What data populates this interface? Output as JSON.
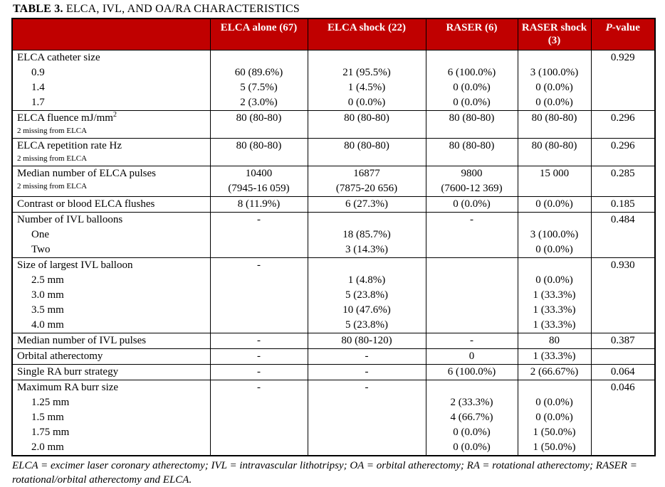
{
  "title": {
    "label_bold": "TABLE 3.",
    "label_rest": " ELCA, IVL, AND OA/RA CHARACTERISTICS"
  },
  "colors": {
    "header_bg": "#C00000",
    "header_text": "#FFFFFF",
    "border": "#000000"
  },
  "table": {
    "columns": [
      {
        "label": ""
      },
      {
        "label": "ELCA alone (67)"
      },
      {
        "label": "ELCA shock (22)"
      },
      {
        "label": "RASER (6)"
      },
      {
        "label": "RASER shock (3)"
      },
      {
        "label": "P-value",
        "italic_p": true
      }
    ],
    "rows": [
      {
        "section_start": true,
        "label": "ELCA catheter size",
        "cells": [
          "",
          "",
          "",
          ""
        ],
        "p": "0.929"
      },
      {
        "indent": true,
        "label": "0.9",
        "cells": [
          "60 (89.6%)",
          "21 (95.5%)",
          "6 (100.0%)",
          "3 (100.0%)"
        ],
        "p": ""
      },
      {
        "indent": true,
        "label": "1.4",
        "cells": [
          "5 (7.5%)",
          "1 (4.5%)",
          "0 (0.0%)",
          "0 (0.0%)"
        ],
        "p": ""
      },
      {
        "indent": true,
        "label": "1.7",
        "cells": [
          "2 (3.0%)",
          "0 (0.0%)",
          "0 (0.0%)",
          "0 (0.0%)"
        ],
        "p": ""
      },
      {
        "section_start": true,
        "label": "ELCA fluence mJ/mm",
        "sup": "2",
        "note": "2 missing from ELCA",
        "cells": [
          "80 (80-80)",
          "80 (80-80)",
          "80 (80-80)",
          "80 (80-80)"
        ],
        "p": "0.296"
      },
      {
        "section_start": true,
        "label": "ELCA repetition rate Hz",
        "note": "2 missing from ELCA",
        "cells": [
          "80 (80-80)",
          "80 (80-80)",
          "80 (80-80)",
          "80 (80-80)"
        ],
        "p": "0.296"
      },
      {
        "section_start": true,
        "label": "Median number of ELCA pulses",
        "note": "2 missing from ELCA",
        "cells": [
          "10400\n(7945-16 059)",
          "16877\n(7875-20 656)",
          "9800\n(7600-12 369)",
          "15 000"
        ],
        "p": "0.285"
      },
      {
        "section_start": true,
        "label": "Contrast or blood ELCA flushes",
        "cells": [
          "8 (11.9%)",
          "6 (27.3%)",
          "0 (0.0%)",
          "0 (0.0%)"
        ],
        "p": "0.185"
      },
      {
        "section_start": true,
        "label": "Number of IVL balloons",
        "cells": [
          "-",
          "",
          "-",
          ""
        ],
        "p": "0.484"
      },
      {
        "indent": true,
        "label": "One",
        "cells": [
          "",
          "18 (85.7%)",
          "",
          "3 (100.0%)"
        ],
        "p": ""
      },
      {
        "indent": true,
        "label": "Two",
        "cells": [
          "",
          "3 (14.3%)",
          "",
          "0 (0.0%)"
        ],
        "p": ""
      },
      {
        "section_start": true,
        "label": "Size of largest IVL balloon",
        "cells": [
          "-",
          "",
          "",
          ""
        ],
        "p": "0.930"
      },
      {
        "indent": true,
        "label": "2.5 mm",
        "cells": [
          "",
          "1 (4.8%)",
          "",
          "0 (0.0%)"
        ],
        "p": ""
      },
      {
        "indent": true,
        "label": "3.0 mm",
        "cells": [
          "",
          "5 (23.8%)",
          "",
          "1 (33.3%)"
        ],
        "p": ""
      },
      {
        "indent": true,
        "label": "3.5 mm",
        "cells": [
          "",
          "10 (47.6%)",
          "",
          "1 (33.3%)"
        ],
        "p": ""
      },
      {
        "indent": true,
        "label": "4.0 mm",
        "cells": [
          "",
          "5 (23.8%)",
          "",
          "1 (33.3%)"
        ],
        "p": ""
      },
      {
        "section_start": true,
        "label": "Median number of IVL pulses",
        "cells": [
          "-",
          "80 (80-120)",
          "-",
          "80"
        ],
        "p": "0.387"
      },
      {
        "section_start": true,
        "label": "Orbital atherectomy",
        "cells": [
          "-",
          "-",
          "0",
          "1 (33.3%)"
        ],
        "p": ""
      },
      {
        "section_start": true,
        "label": "Single RA burr strategy",
        "cells": [
          "-",
          "-",
          "6 (100.0%)",
          "2 (66.67%)"
        ],
        "p": "0.064"
      },
      {
        "section_start": true,
        "label": "Maximum RA burr size",
        "cells": [
          "-",
          "-",
          "",
          ""
        ],
        "p": "0.046"
      },
      {
        "indent": true,
        "label": "1.25 mm",
        "cells": [
          "",
          "",
          "2 (33.3%)",
          "0 (0.0%)"
        ],
        "p": ""
      },
      {
        "indent": true,
        "label": "1.5 mm",
        "cells": [
          "",
          "",
          "4 (66.7%)",
          "0 (0.0%)"
        ],
        "p": ""
      },
      {
        "indent": true,
        "label": "1.75 mm",
        "cells": [
          "",
          "",
          "0 (0.0%)",
          "1 (50.0%)"
        ],
        "p": ""
      },
      {
        "indent": true,
        "label": "2.0 mm",
        "cells": [
          "",
          "",
          "0 (0.0%)",
          "1 (50.0%)"
        ],
        "p": ""
      }
    ]
  },
  "footnote": "ELCA = excimer laser coronary atherectomy; IVL = intravascular lithotripsy; OA = orbital atherectomy; RA = rotational atherectomy; RASER = rotational/orbital atherectomy and ELCA."
}
